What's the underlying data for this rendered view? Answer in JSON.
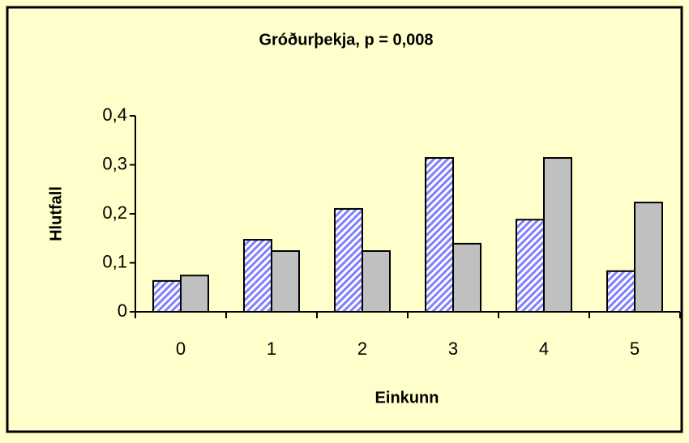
{
  "chart_data": {
    "type": "bar",
    "title": "Gróðurþekja, p = 0,008",
    "xlabel": "Einkunn",
    "ylabel": "Hlutfall",
    "categories": [
      "0",
      "1",
      "2",
      "3",
      "4",
      "5"
    ],
    "series": [
      {
        "color": "#8080ff",
        "pattern": "hatch",
        "values": [
          0.063,
          0.147,
          0.21,
          0.314,
          0.188,
          0.083
        ]
      },
      {
        "color": "#c0c0c0",
        "values": [
          0.074,
          0.124,
          0.124,
          0.139,
          0.314,
          0.223
        ]
      }
    ],
    "ylim": [
      0,
      0.4
    ],
    "yticks": [
      0,
      {
        "value": 0.1,
        "label": "0,1"
      },
      {
        "value": 0.2,
        "label": "0,2"
      },
      {
        "value": 0.3,
        "label": "0,3"
      },
      {
        "value": 0.4,
        "label": "0,4"
      }
    ],
    "grid": false
  }
}
